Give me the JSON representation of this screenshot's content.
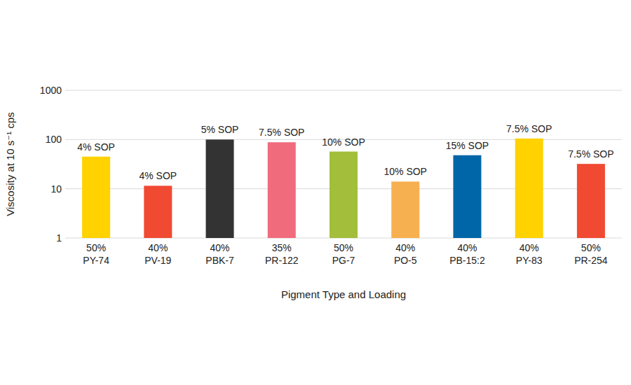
{
  "chart_data": {
    "type": "bar",
    "categories": [
      "50%\nPY-74",
      "40%\nPV-19",
      "40%\nPBK-7",
      "35%\nPR-122",
      "50%\nPG-7",
      "40%\nPO-5",
      "40%\nPB-15:2",
      "40%\nPY-83",
      "50%\nPR-254"
    ],
    "values": [
      45,
      11.5,
      100,
      88,
      57,
      14,
      48,
      105,
      32
    ],
    "colors": [
      "#FFD200",
      "#F04A32",
      "#333333",
      "#F06B7C",
      "#A3BE3A",
      "#F7B04F",
      "#0066A8",
      "#FFD200",
      "#F04A32"
    ],
    "annotations": [
      "4% SOP",
      "4% SOP",
      "5% SOP",
      "7.5% SOP",
      "10% SOP",
      "10% SOP",
      "15% SOP",
      "7.5% SOP",
      "7.5% SOP"
    ],
    "x_label": "Pigment Type and Loading",
    "y_label": "Viscosity at 10 s⁻¹ cps",
    "ylim": [
      1,
      1000
    ],
    "yticks": [
      1,
      10,
      100,
      1000
    ],
    "log": "y",
    "grid": true
  }
}
